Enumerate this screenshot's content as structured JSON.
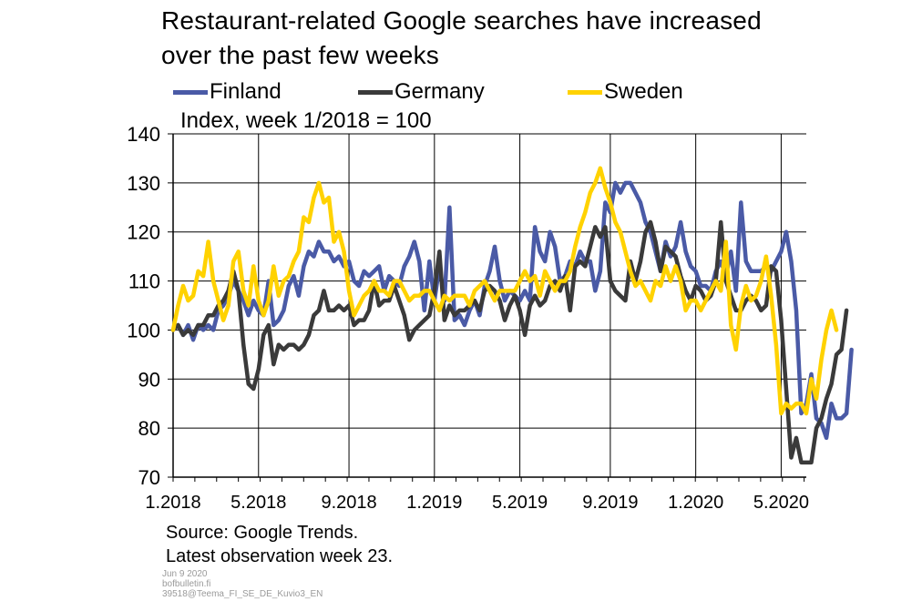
{
  "title_lines": [
    "Restaurant-related Google searches have increased",
    "over the past few weeks"
  ],
  "subtitle": "Index, week 1/2018 = 100",
  "legend": [
    {
      "name": "Finland",
      "color": "#4a5aa6"
    },
    {
      "name": "Germany",
      "color": "#3a3a3a"
    },
    {
      "name": "Sweden",
      "color": "#ffd200"
    }
  ],
  "source_line_1": "Source: Google Trends.",
  "source_line_2": "Latest observation week 23.",
  "meta_date": "Jun 9 2020",
  "meta_site": "bofbulletin.fi",
  "meta_id": "39518@Teema_FI_SE_DE_Kuvio3_EN",
  "chart_data": {
    "type": "line",
    "title": "Restaurant-related Google searches have increased over the past few weeks",
    "ylabel": "Index, week 1/2018 = 100",
    "ylim": [
      70,
      140
    ],
    "yticks": [
      70,
      80,
      90,
      100,
      110,
      120,
      130,
      140
    ],
    "xlim": [
      1,
      127
    ],
    "x_unit": "week index (1 = week 1/2018)",
    "xticks": [
      {
        "x": 1,
        "label": "1.2018"
      },
      {
        "x": 18,
        "label": "5.2018"
      },
      {
        "x": 36,
        "label": "9.2018"
      },
      {
        "x": 53,
        "label": "1.2019"
      },
      {
        "x": 70,
        "label": "5.2019"
      },
      {
        "x": 88,
        "label": "9.2019"
      },
      {
        "x": 105,
        "label": "1.2020"
      },
      {
        "x": 122,
        "label": "5.2020"
      }
    ],
    "grid": true,
    "legend_position": "top",
    "series": [
      {
        "name": "Finland",
        "color": "#4a5aa6",
        "values": [
          100,
          101,
          99,
          101,
          98,
          101,
          100,
          101,
          100,
          104,
          105,
          107,
          110,
          108,
          106,
          103,
          106,
          104,
          103,
          110,
          101,
          102,
          104,
          109,
          111,
          107,
          113,
          116,
          115,
          118,
          116,
          116,
          114,
          115,
          113,
          114,
          110,
          109,
          112,
          111,
          112,
          113,
          108,
          111,
          110,
          109,
          113,
          115,
          118,
          114,
          104,
          114,
          106,
          113,
          106,
          125,
          102,
          103,
          101,
          104,
          106,
          103,
          109,
          112,
          117,
          110,
          106,
          108,
          107,
          106,
          108,
          106,
          121,
          116,
          114,
          120,
          117,
          110,
          111,
          114,
          113,
          116,
          114,
          114,
          108,
          112,
          126,
          124,
          130,
          128,
          130,
          130,
          128,
          126,
          122,
          120,
          116,
          112,
          118,
          115,
          117,
          122,
          116,
          113,
          112,
          109,
          109,
          108,
          112,
          114,
          111,
          116,
          108,
          126,
          114,
          112,
          112,
          112,
          113,
          112,
          114,
          116,
          120,
          114,
          104,
          83,
          85,
          91,
          82,
          81,
          78,
          85,
          82,
          82,
          83,
          96
        ],
        "x_start": 1
      },
      {
        "name": "Germany",
        "color": "#3a3a3a",
        "values": [
          100,
          101,
          99,
          100,
          99,
          101,
          101,
          103,
          103,
          105,
          106,
          108,
          112,
          108,
          97,
          89,
          88,
          92,
          99,
          101,
          93,
          97,
          96,
          97,
          97,
          96,
          97,
          99,
          103,
          104,
          108,
          104,
          104,
          105,
          104,
          105,
          101,
          102,
          102,
          104,
          110,
          105,
          106,
          106,
          109,
          106,
          103,
          98,
          100,
          101,
          102,
          103,
          108,
          116,
          102,
          105,
          103,
          104,
          104,
          105,
          106,
          104,
          108,
          109,
          108,
          106,
          102,
          105,
          107,
          104,
          99,
          105,
          107,
          105,
          106,
          109,
          110,
          108,
          111,
          104,
          113,
          114,
          113,
          117,
          121,
          119,
          121,
          110,
          108,
          107,
          106,
          114,
          110,
          114,
          120,
          122,
          118,
          112,
          117,
          116,
          115,
          111,
          108,
          106,
          109,
          108,
          106,
          107,
          110,
          122,
          110,
          107,
          104,
          104,
          106,
          107,
          106,
          104,
          105,
          113,
          112,
          102,
          88,
          74,
          78,
          73,
          73,
          73,
          80,
          82,
          86,
          89,
          95,
          96,
          104
        ],
        "x_start": 1
      },
      {
        "name": "Sweden",
        "color": "#ffd200",
        "values": [
          100,
          105,
          109,
          106,
          107,
          112,
          111,
          118,
          110,
          106,
          102,
          105,
          114,
          116,
          108,
          105,
          113,
          106,
          103,
          106,
          113,
          107,
          110,
          111,
          114,
          116,
          123,
          122,
          127,
          130,
          126,
          127,
          118,
          120,
          116,
          108,
          103,
          105,
          107,
          108,
          110,
          108,
          108,
          107,
          110,
          110,
          108,
          106,
          107,
          107,
          108,
          108,
          106,
          104,
          107,
          106,
          107,
          107,
          107,
          105,
          108,
          109,
          110,
          108,
          106,
          108,
          108,
          108,
          108,
          110,
          112,
          110,
          111,
          107,
          112,
          110,
          108,
          110,
          110,
          112,
          117,
          121,
          124,
          128,
          130,
          133,
          129,
          126,
          122,
          120,
          116,
          112,
          109,
          110,
          108,
          106,
          110,
          109,
          113,
          110,
          113,
          110,
          104,
          106,
          106,
          104,
          106,
          108,
          110,
          108,
          118,
          101,
          96,
          105,
          109,
          106,
          107,
          110,
          115,
          107,
          97,
          83,
          85,
          84,
          85,
          85,
          83,
          90,
          86,
          94,
          100,
          104,
          100
        ]
      }
    ]
  }
}
